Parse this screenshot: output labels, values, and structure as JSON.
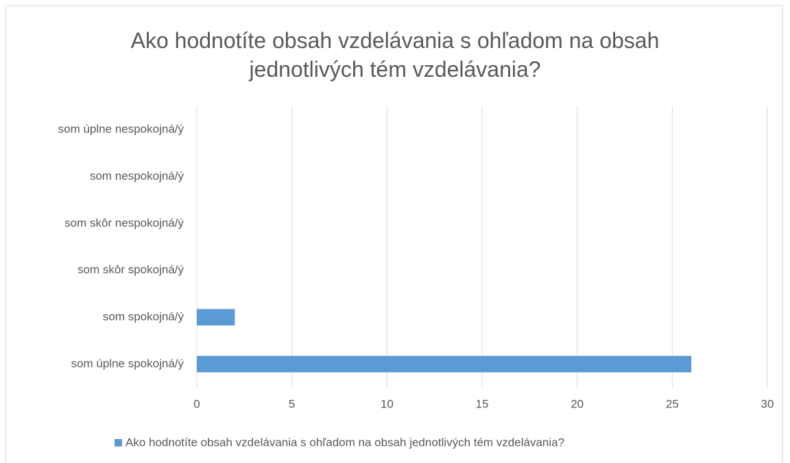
{
  "chart_data": {
    "type": "bar",
    "orientation": "horizontal",
    "title": "Ako hodnotíte obsah vzdelávania s ohľadom na obsah jednotlivých tém vzdelávania?",
    "categories": [
      "som úplne nespokojná/ý",
      "som nespokojná/ý",
      "som skôr nespokojná/ý",
      "som skôr spokojná/ý",
      "som spokojná/ý",
      "som úplne spokojná/ý"
    ],
    "series": [
      {
        "name": "Ako hodnotíte obsah vzdelávania s ohľadom na obsah jednotlivých tém vzdelávania?",
        "color": "#5b9bd5",
        "values": [
          0,
          0,
          0,
          0,
          2,
          26
        ]
      }
    ],
    "xlim": [
      0,
      30
    ],
    "xticks": [
      0,
      5,
      10,
      15,
      20,
      25,
      30
    ],
    "grid": true,
    "legend": "bottom"
  }
}
